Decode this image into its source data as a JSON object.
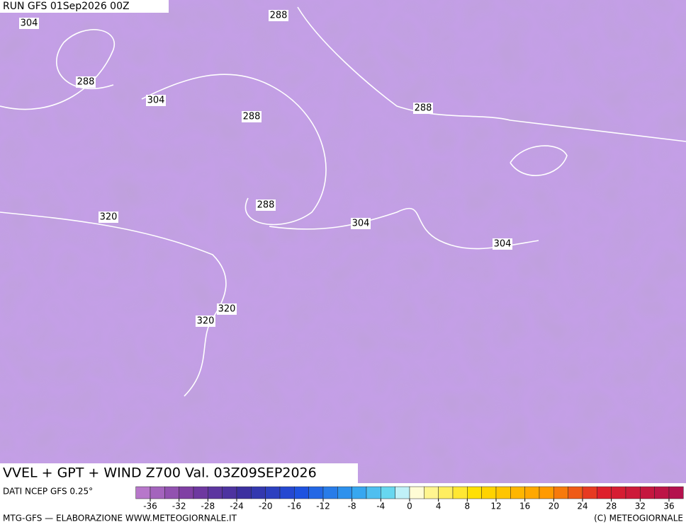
{
  "header": {
    "run": "RUN GFS 01Sep2026 00Z"
  },
  "contour_labels": [
    "304",
    "288",
    "288",
    "304",
    "288",
    "288",
    "288",
    "304",
    "304",
    "320",
    "320",
    "320"
  ],
  "footer": {
    "title": "VVEL + GPT + WIND Z700 Val. 03Z09SEP2026",
    "source": "DATI NCEP GFS 0.25°",
    "colorbar_ticks": [
      -36,
      -32,
      -28,
      -24,
      -20,
      -16,
      -12,
      -8,
      -4,
      0,
      4,
      8,
      12,
      16,
      20,
      24,
      28,
      32,
      36
    ],
    "credit_left": "MTG-GFS — ELABORAZIONE WWW.METEOGIORNALE.IT",
    "credit_right": "(C) METEOGIORNALE"
  }
}
